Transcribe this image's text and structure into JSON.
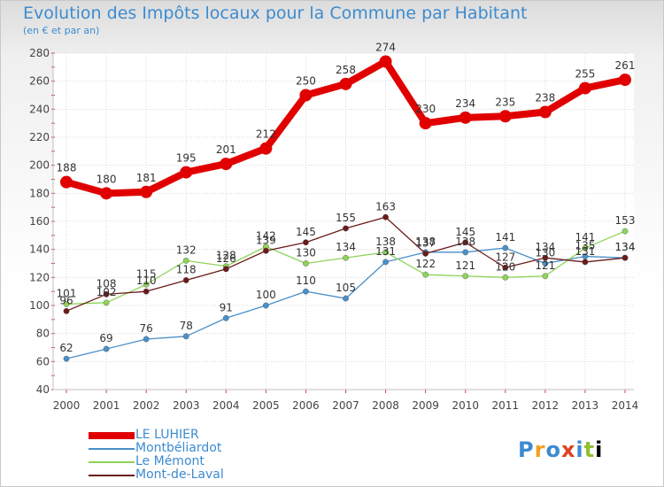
{
  "chart_data": {
    "type": "line",
    "title": "Evolution des Impôts locaux pour la Commune par Habitant",
    "subtitle": "(en € et par an)",
    "x": [
      "2000",
      "2001",
      "2002",
      "2003",
      "2004",
      "2005",
      "2006",
      "2007",
      "2008",
      "2009",
      "2010",
      "2011",
      "2012",
      "2013",
      "2014"
    ],
    "ylim": [
      40,
      280
    ],
    "yticks": [
      40,
      60,
      80,
      100,
      120,
      140,
      160,
      180,
      200,
      220,
      240,
      260,
      280
    ],
    "grid": true,
    "legend_position": "bottom-left",
    "series": [
      {
        "name": "LE LUHIER",
        "color": "#e00000",
        "values": [
          188,
          180,
          181,
          195,
          201,
          212,
          250,
          258,
          274,
          230,
          234,
          235,
          238,
          255,
          261
        ]
      },
      {
        "name": "Montbéliardot",
        "color": "#4a8fc8",
        "values": [
          62,
          69,
          76,
          78,
          91,
          100,
          110,
          105,
          131,
          138,
          138,
          141,
          130,
          135,
          134
        ]
      },
      {
        "name": "Le Mémont",
        "color": "#8fd35a",
        "values": [
          101,
          102,
          115,
          132,
          128,
          142,
          130,
          134,
          138,
          122,
          121,
          120,
          121,
          141,
          153
        ]
      },
      {
        "name": "Mont-de-Laval",
        "color": "#6b1a1a",
        "values": [
          96,
          108,
          110,
          118,
          126,
          139,
          145,
          155,
          163,
          137,
          145,
          127,
          134,
          131,
          134
        ]
      }
    ]
  },
  "logo": {
    "letters": [
      "P",
      "r",
      "o",
      "x",
      "i",
      "t",
      "i"
    ]
  }
}
